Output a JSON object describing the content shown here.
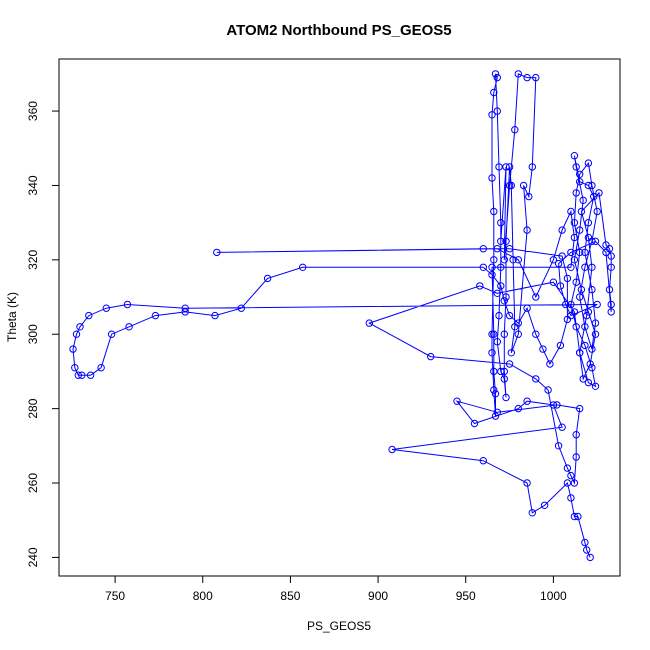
{
  "chart_data": {
    "type": "line",
    "title": "ATOM2 Northbound PS_GEOS5",
    "xlabel": "PS_GEOS5",
    "ylabel": "Theta (K)",
    "xlim": [
      718,
      1038
    ],
    "ylim": [
      235,
      374
    ],
    "x_ticks": [
      750,
      800,
      850,
      900,
      950,
      1000
    ],
    "y_ticks": [
      240,
      260,
      280,
      300,
      320,
      340,
      360
    ],
    "grid": false,
    "series": [
      {
        "color": "#0000ff",
        "points": [
          [
            1021,
            240
          ],
          [
            1019,
            242
          ],
          [
            1018,
            244
          ],
          [
            1014,
            251
          ],
          [
            1012,
            251
          ],
          [
            1010,
            256
          ],
          [
            1008,
            260
          ],
          [
            995,
            254
          ],
          [
            988,
            252
          ],
          [
            985,
            260
          ],
          [
            960,
            266
          ],
          [
            908,
            269
          ],
          [
            1005,
            275
          ],
          [
            1000,
            281
          ],
          [
            985,
            282
          ],
          [
            980,
            280
          ],
          [
            955,
            276
          ],
          [
            945,
            282
          ],
          [
            968,
            279
          ],
          [
            1002,
            281
          ],
          [
            1015,
            280
          ],
          [
            1013,
            273
          ],
          [
            1013,
            267
          ],
          [
            1012,
            260
          ],
          [
            1010,
            262
          ],
          [
            1008,
            264
          ],
          [
            1003,
            270
          ],
          [
            997,
            285
          ],
          [
            990,
            288
          ],
          [
            975,
            292
          ],
          [
            930,
            294
          ],
          [
            895,
            303
          ],
          [
            958,
            313
          ],
          [
            968,
            311
          ],
          [
            1000,
            314
          ],
          [
            1012,
            306
          ],
          [
            1015,
            295
          ],
          [
            1020,
            287
          ],
          [
            1024,
            286
          ],
          [
            1022,
            291
          ],
          [
            1018,
            297
          ],
          [
            1013,
            302
          ],
          [
            1010,
            308
          ],
          [
            1013,
            314
          ],
          [
            1015,
            322
          ],
          [
            1012,
            330
          ],
          [
            1013,
            338
          ],
          [
            1015,
            343
          ],
          [
            1020,
            346
          ],
          [
            1022,
            340
          ],
          [
            1025,
            333
          ],
          [
            1022,
            325
          ],
          [
            1018,
            318
          ],
          [
            1015,
            310
          ],
          [
            1018,
            302
          ],
          [
            1022,
            296
          ],
          [
            1024,
            303
          ],
          [
            1022,
            312
          ],
          [
            1018,
            322
          ],
          [
            1020,
            330
          ],
          [
            1023,
            337
          ],
          [
            1020,
            340
          ],
          [
            1015,
            341
          ],
          [
            1012,
            348
          ],
          [
            1013,
            345
          ],
          [
            1017,
            336
          ],
          [
            1015,
            328
          ],
          [
            1012,
            320
          ],
          [
            1016,
            312
          ],
          [
            1020,
            306
          ],
          [
            1024,
            300
          ],
          [
            1021,
            292
          ],
          [
            1017,
            288
          ],
          [
            1015,
            295
          ],
          [
            1019,
            305
          ],
          [
            1022,
            318
          ],
          [
            1020,
            326
          ],
          [
            1016,
            333
          ],
          [
            1026,
            338
          ],
          [
            1030,
            324
          ],
          [
            1032,
            323
          ],
          [
            1033,
            321
          ],
          [
            1033,
            318
          ],
          [
            1032,
            312
          ],
          [
            1033,
            308
          ],
          [
            1033,
            306
          ],
          [
            1030,
            322
          ],
          [
            1024,
            325
          ],
          [
            1010,
            322
          ],
          [
            1003,
            319
          ],
          [
            1004,
            313
          ],
          [
            1007,
            308
          ],
          [
            1010,
            305
          ],
          [
            1025,
            308
          ],
          [
            790,
            307
          ],
          [
            757,
            308
          ],
          [
            745,
            307
          ],
          [
            735,
            305
          ],
          [
            730,
            302
          ],
          [
            728,
            300
          ],
          [
            726,
            296
          ],
          [
            727,
            291
          ],
          [
            729,
            289
          ],
          [
            731,
            289
          ],
          [
            736,
            289
          ],
          [
            742,
            291
          ],
          [
            748,
            300
          ],
          [
            758,
            302
          ],
          [
            773,
            305
          ],
          [
            790,
            306
          ],
          [
            807,
            305
          ],
          [
            822,
            307
          ],
          [
            837,
            315
          ],
          [
            857,
            318
          ],
          [
            960,
            318
          ],
          [
            965,
            316
          ],
          [
            970,
            313
          ],
          [
            972,
            309
          ],
          [
            975,
            305
          ],
          [
            980,
            303
          ],
          [
            985,
            307
          ],
          [
            990,
            300
          ],
          [
            994,
            296
          ],
          [
            998,
            292
          ],
          [
            1004,
            297
          ],
          [
            1008,
            304
          ],
          [
            1008,
            315
          ],
          [
            1005,
            321
          ],
          [
            975,
            323
          ],
          [
            960,
            323
          ],
          [
            808,
            322
          ],
          [
            968,
            323
          ],
          [
            980,
            320
          ],
          [
            990,
            310
          ],
          [
            1000,
            320
          ],
          [
            1005,
            328
          ],
          [
            1010,
            333
          ],
          [
            1012,
            326
          ],
          [
            1010,
            318
          ],
          [
            965,
            318
          ],
          [
            966,
            300
          ],
          [
            966,
            290
          ],
          [
            967,
            284
          ],
          [
            967,
            278
          ],
          [
            966,
            285
          ],
          [
            965,
            295
          ],
          [
            965,
            300
          ],
          [
            966,
            320
          ],
          [
            966,
            333
          ],
          [
            965,
            342
          ],
          [
            965,
            359
          ],
          [
            966,
            365
          ],
          [
            968,
            369
          ],
          [
            967,
            370
          ],
          [
            968,
            360
          ],
          [
            969,
            345
          ],
          [
            970,
            330
          ],
          [
            970,
            318
          ],
          [
            969,
            305
          ],
          [
            968,
            298
          ],
          [
            970,
            290
          ],
          [
            972,
            288
          ],
          [
            973,
            283
          ],
          [
            972,
            290
          ],
          [
            972,
            300
          ],
          [
            973,
            310
          ],
          [
            973,
            325
          ],
          [
            975,
            345
          ],
          [
            976,
            340
          ],
          [
            977,
            320
          ],
          [
            978,
            302
          ],
          [
            976,
            295
          ],
          [
            980,
            300
          ],
          [
            985,
            328
          ],
          [
            983,
            340
          ],
          [
            986,
            337
          ],
          [
            988,
            345
          ],
          [
            990,
            369
          ],
          [
            985,
            369
          ],
          [
            980,
            370
          ],
          [
            978,
            355
          ],
          [
            975,
            340
          ],
          [
            972,
            320
          ],
          [
            973,
            345
          ],
          [
            970,
            325
          ]
        ]
      }
    ]
  }
}
